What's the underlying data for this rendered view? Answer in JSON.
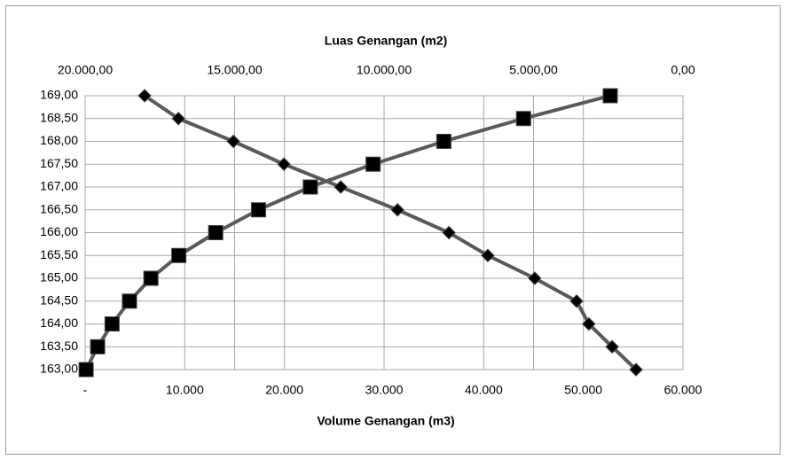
{
  "chart_data": {
    "type": "scatter",
    "title": "Luas Genangan (m2)",
    "xlabel": "Volume Genangan (m3)",
    "y": [
      163,
      163.5,
      164,
      164.5,
      165,
      165.5,
      166,
      166.5,
      167,
      167.5,
      168,
      168.5,
      169
    ],
    "series": [
      {
        "color": "#595959",
        "marker": "square",
        "axis": "x",
        "x": [
          100,
          1250,
          2700,
          4450,
          6600,
          9400,
          13100,
          17400,
          22600,
          28900,
          36000,
          44000,
          52700
        ]
      },
      {
        "color": "#595959",
        "marker": "diamond",
        "axis": "x2",
        "x": [
          1570,
          2370,
          3150,
          3560,
          4960,
          6530,
          7830,
          9550,
          11450,
          13350,
          15040,
          16880,
          18010
        ]
      }
    ],
    "xlim": [
      0,
      60000
    ],
    "xticks": [
      {
        "value": 0,
        "label": "-"
      },
      {
        "value": 10000,
        "label": "10.000"
      },
      {
        "value": 20000,
        "label": "20.000"
      },
      {
        "value": 30000,
        "label": "30.000"
      },
      {
        "value": 40000,
        "label": "40.000"
      },
      {
        "value": 50000,
        "label": "50.000"
      },
      {
        "value": 60000,
        "label": "60.000"
      }
    ],
    "x2lim": [
      20000,
      0
    ],
    "x2ticks": [
      {
        "value": 20000,
        "label": "20.000,00"
      },
      {
        "value": 15000,
        "label": "15.000,00"
      },
      {
        "value": 10000,
        "label": "10.000,00"
      },
      {
        "value": 5000,
        "label": "5.000,00"
      },
      {
        "value": 0,
        "label": "0,00"
      }
    ],
    "ylim": [
      163,
      169
    ],
    "yticks": [
      {
        "value": 163,
        "label": "163,00"
      },
      {
        "value": 163.5,
        "label": "163,50"
      },
      {
        "value": 164,
        "label": "164,00"
      },
      {
        "value": 164.5,
        "label": "164,50"
      },
      {
        "value": 165,
        "label": "165,00"
      },
      {
        "value": 165.5,
        "label": "165,50"
      },
      {
        "value": 166,
        "label": "166,00"
      },
      {
        "value": 166.5,
        "label": "166,50"
      },
      {
        "value": 167,
        "label": "167,00"
      },
      {
        "value": 167.5,
        "label": "167,50"
      },
      {
        "value": 168,
        "label": "168,00"
      },
      {
        "value": 168.5,
        "label": "168,50"
      },
      {
        "value": 169,
        "label": "169,00"
      }
    ],
    "grid": true
  }
}
